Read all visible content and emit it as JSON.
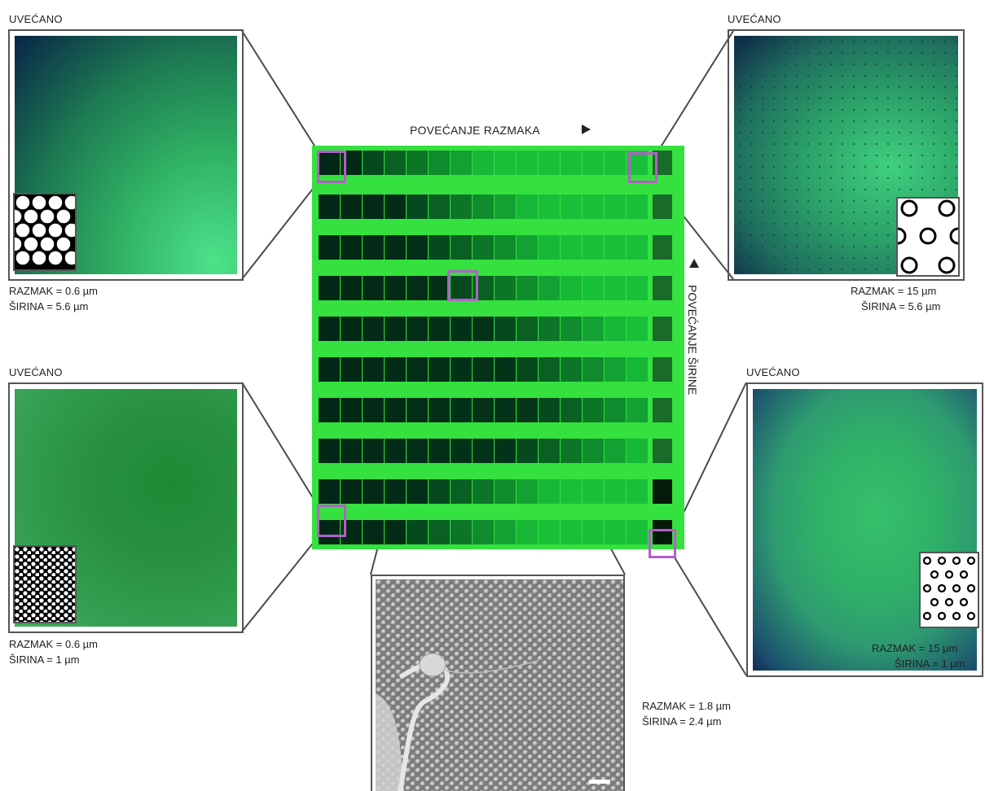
{
  "top_label": "POVEĆANJE RAZMAKA",
  "side_label": "POVEĆANJE ŠIRINE",
  "panels": [
    {
      "label": "UVEĆANO",
      "razmak": "RAZMAK = 0.6 µm",
      "sirina": "ŠIRINA = 5.6 µm"
    },
    {
      "label": "UVEĆANO",
      "razmak": "RAZMAK = 15 µm",
      "sirina": "ŠIRINA = 5.6 µm"
    },
    {
      "label": "UVEĆANO",
      "razmak": "RAZMAK = 0.6 µm",
      "sirina": "ŠIRINA = 1 µm"
    },
    {
      "label": "UVEĆANO",
      "razmak": "RAZMAK = 15 µm",
      "sirina": "ŠIRINA = 1 µm"
    }
  ],
  "sem": {
    "razmak": "RAZMAK = 1.8 µm",
    "sirina": "ŠIRINA = 2.4 µm"
  },
  "colors": {
    "chip_green": "#34e13e",
    "highlight": "#b45fc8",
    "line": "#555555"
  }
}
